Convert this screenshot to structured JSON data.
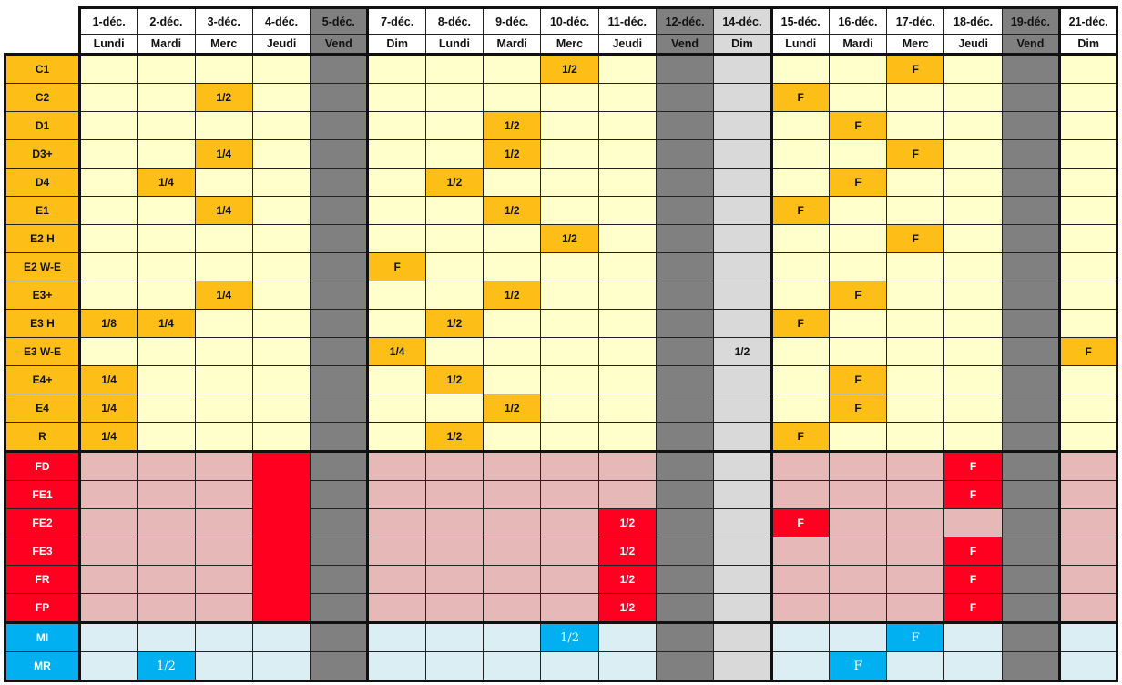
{
  "columns": [
    {
      "date": "1-déc.",
      "day": "Lundi"
    },
    {
      "date": "2-déc.",
      "day": "Mardi"
    },
    {
      "date": "3-déc.",
      "day": "Merc"
    },
    {
      "date": "4-déc.",
      "day": "Jeudi"
    },
    {
      "date": "5-déc.",
      "day": "Vend",
      "style": "vend"
    },
    {
      "date": "7-déc.",
      "day": "Dim"
    },
    {
      "date": "8-déc.",
      "day": "Lundi"
    },
    {
      "date": "9-déc.",
      "day": "Mardi"
    },
    {
      "date": "10-déc.",
      "day": "Merc"
    },
    {
      "date": "11-déc.",
      "day": "Jeudi"
    },
    {
      "date": "12-déc.",
      "day": "Vend",
      "style": "vend"
    },
    {
      "date": "14-déc.",
      "day": "Dim",
      "style": "dim14"
    },
    {
      "date": "15-déc.",
      "day": "Lundi"
    },
    {
      "date": "16-déc.",
      "day": "Mardi"
    },
    {
      "date": "17-déc.",
      "day": "Merc"
    },
    {
      "date": "18-déc.",
      "day": "Jeudi"
    },
    {
      "date": "19-déc.",
      "day": "Vend",
      "style": "vend"
    },
    {
      "date": "21-déc.",
      "day": "Dim"
    }
  ],
  "colors": {
    "orange": "#fdbf17",
    "light_yellow": "#ffffcc",
    "red": "#ff0020",
    "pink": "#e6b8b7",
    "blue": "#00b0f0",
    "light_blue": "#daeef3",
    "gray": "#808080"
  },
  "groups": [
    {
      "color": "orange",
      "rows": [
        {
          "label": "C1",
          "cells": {
            "8": "1/2",
            "14": "F"
          }
        },
        {
          "label": "C2",
          "cells": {
            "2": "1/2",
            "12": "F"
          }
        },
        {
          "label": "D1",
          "cells": {
            "7": "1/2",
            "13": "F"
          }
        },
        {
          "label": "D3+",
          "cells": {
            "2": "1/4",
            "7": "1/2",
            "14": "F"
          }
        },
        {
          "label": "D4",
          "cells": {
            "1": "1/4",
            "6": "1/2",
            "13": "F"
          }
        },
        {
          "label": "E1",
          "cells": {
            "2": "1/4",
            "7": "1/2",
            "12": "F"
          }
        },
        {
          "label": "E2 H",
          "cells": {
            "8": "1/2",
            "14": "F"
          }
        },
        {
          "label": "E2 W-E",
          "cells": {
            "5": "F"
          }
        },
        {
          "label": "E3+",
          "cells": {
            "2": "1/4",
            "7": "1/2",
            "13": "F"
          }
        },
        {
          "label": "E3 H",
          "cells": {
            "0": "1/8",
            "1": "1/4",
            "6": "1/2",
            "12": "F"
          }
        },
        {
          "label": "E3 W-E",
          "cells": {
            "5": "1/4",
            "11": "1/2",
            "17": "F"
          }
        },
        {
          "label": "E4+",
          "cells": {
            "0": "1/4",
            "6": "1/2",
            "13": "F"
          }
        },
        {
          "label": "E4",
          "cells": {
            "0": "1/4",
            "7": "1/2",
            "13": "F"
          }
        },
        {
          "label": "R",
          "cells": {
            "0": "1/4",
            "6": "1/2",
            "12": "F"
          }
        }
      ]
    },
    {
      "color": "red",
      "merged_red_column": "4-déc.",
      "rows": [
        {
          "label": "FD",
          "cells": {
            "15": "F"
          }
        },
        {
          "label": "FE1",
          "cells": {
            "15": "F"
          }
        },
        {
          "label": "FE2",
          "cells": {
            "9": "1/2",
            "12": "F"
          }
        },
        {
          "label": "FE3",
          "cells": {
            "9": "1/2",
            "15": "F"
          }
        },
        {
          "label": "FR",
          "cells": {
            "9": "1/2",
            "15": "F"
          }
        },
        {
          "label": "FP",
          "cells": {
            "9": "1/2",
            "15": "F"
          }
        }
      ]
    },
    {
      "color": "blue",
      "rows": [
        {
          "label": "MI",
          "cells": {
            "8": "1/2",
            "14": "F"
          }
        },
        {
          "label": "MR",
          "cells": {
            "1": "1/2",
            "13": "F"
          }
        }
      ]
    }
  ]
}
